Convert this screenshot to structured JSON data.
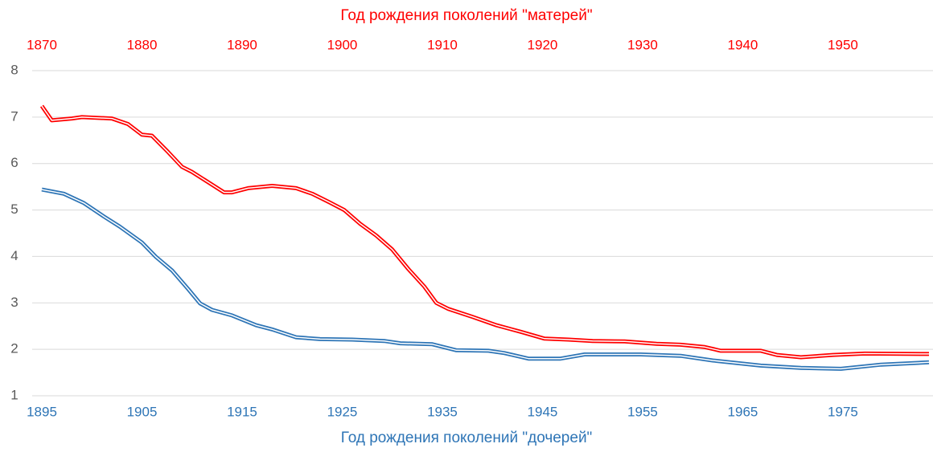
{
  "chart_data": {
    "type": "line",
    "x2label": "Год рождения  поколений \"матерей\"",
    "xlabel": "Год рождения поколений \"дочерей\"",
    "xlim": [
      1895,
      1984
    ],
    "xticks": [
      1895,
      1905,
      1915,
      1925,
      1935,
      1945,
      1955,
      1965,
      1975
    ],
    "x2lim": [
      1870,
      1959
    ],
    "x2ticks": [
      1870,
      1880,
      1890,
      1900,
      1910,
      1920,
      1930,
      1940,
      1950
    ],
    "ylim": [
      1,
      8
    ],
    "yticks": [
      1,
      2,
      3,
      4,
      5,
      6,
      7,
      8
    ],
    "grid": true,
    "series": [
      {
        "color": "#ff0000",
        "axis": "x2",
        "x": [
          1870,
          1871,
          1873,
          1874,
          1877,
          1878.6,
          1880,
          1881,
          1882.6,
          1884,
          1885,
          1886.6,
          1888.2,
          1889,
          1890.6,
          1893,
          1895.4,
          1897,
          1898.6,
          1900.2,
          1901.8,
          1903.4,
          1905,
          1906.6,
          1908.2,
          1909.4,
          1910.6,
          1913,
          1915.4,
          1917.8,
          1920.2,
          1922.6,
          1925,
          1928.2,
          1931.4,
          1933.8,
          1936.2,
          1937.8,
          1941.8,
          1943.4,
          1945.8,
          1949,
          1952.2,
          1958.6
        ],
        "values": [
          7.24,
          6.93,
          6.97,
          7.0,
          6.97,
          6.85,
          6.62,
          6.6,
          6.25,
          5.93,
          5.82,
          5.6,
          5.38,
          5.38,
          5.47,
          5.52,
          5.47,
          5.35,
          5.18,
          5.0,
          4.7,
          4.45,
          4.15,
          3.73,
          3.35,
          3.0,
          2.87,
          2.7,
          2.52,
          2.38,
          2.23,
          2.21,
          2.18,
          2.17,
          2.12,
          2.1,
          2.05,
          1.97,
          1.97,
          1.88,
          1.83,
          1.88,
          1.91,
          1.9
        ]
      },
      {
        "color": "#2e75b6",
        "x": [
          1895,
          1897.2,
          1899.2,
          1901.2,
          1902.8,
          1905,
          1906.4,
          1908,
          1909.6,
          1910.8,
          1912,
          1914,
          1916.4,
          1918,
          1920.4,
          1922.8,
          1926,
          1929.2,
          1930.8,
          1934,
          1936.4,
          1939.6,
          1941.2,
          1943.6,
          1946.8,
          1949.2,
          1954.8,
          1958.8,
          1962,
          1966.8,
          1970.8,
          1974.8,
          1978.8,
          1983.6
        ],
        "values": [
          5.44,
          5.35,
          5.15,
          4.86,
          4.64,
          4.3,
          3.99,
          3.7,
          3.3,
          2.99,
          2.85,
          2.73,
          2.52,
          2.43,
          2.26,
          2.22,
          2.21,
          2.18,
          2.13,
          2.11,
          1.98,
          1.97,
          1.92,
          1.8,
          1.8,
          1.89,
          1.89,
          1.86,
          1.76,
          1.65,
          1.6,
          1.58,
          1.67,
          1.72
        ]
      }
    ]
  }
}
